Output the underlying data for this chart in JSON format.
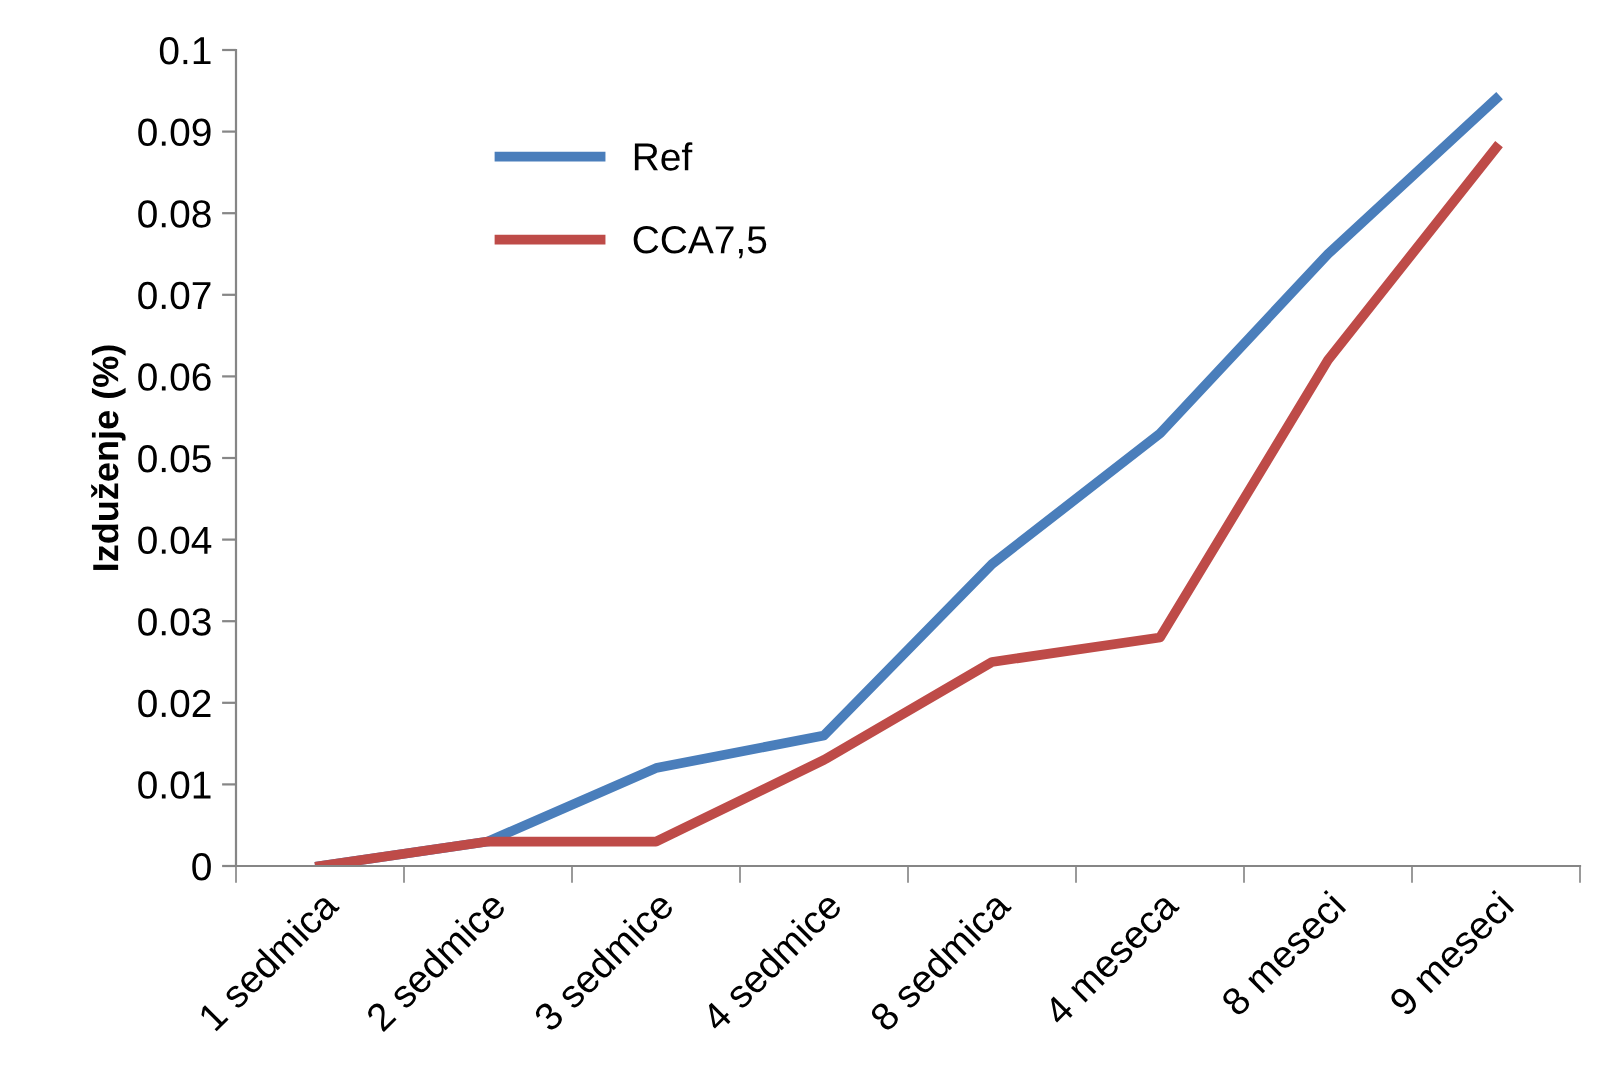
{
  "chart_data": {
    "type": "line",
    "ylabel": "Izduženje (%)",
    "categories": [
      "1 sedmica",
      "2 sedmice",
      "3 sedmice",
      "4 sedmice",
      "8 sedmica",
      "4 meseca",
      "8 meseci",
      "9 meseci"
    ],
    "series": [
      {
        "name": "Ref",
        "color": "#4a7ebb",
        "values": [
          0,
          0.003,
          0.012,
          0.016,
          0.037,
          0.053,
          0.075,
          0.094
        ]
      },
      {
        "name": "CCA7,5",
        "color": "#be4b48",
        "values": [
          0,
          0.003,
          0.003,
          0.013,
          0.025,
          0.028,
          0.062,
          0.088
        ]
      }
    ],
    "ylim": [
      0,
      0.1
    ],
    "yticks": [
      0,
      0.01,
      0.02,
      0.03,
      0.04,
      0.05,
      0.06,
      0.07,
      0.08,
      0.09,
      0.1
    ],
    "grid": false,
    "legend": "top left",
    "marker": "none",
    "line_style": "solid"
  }
}
